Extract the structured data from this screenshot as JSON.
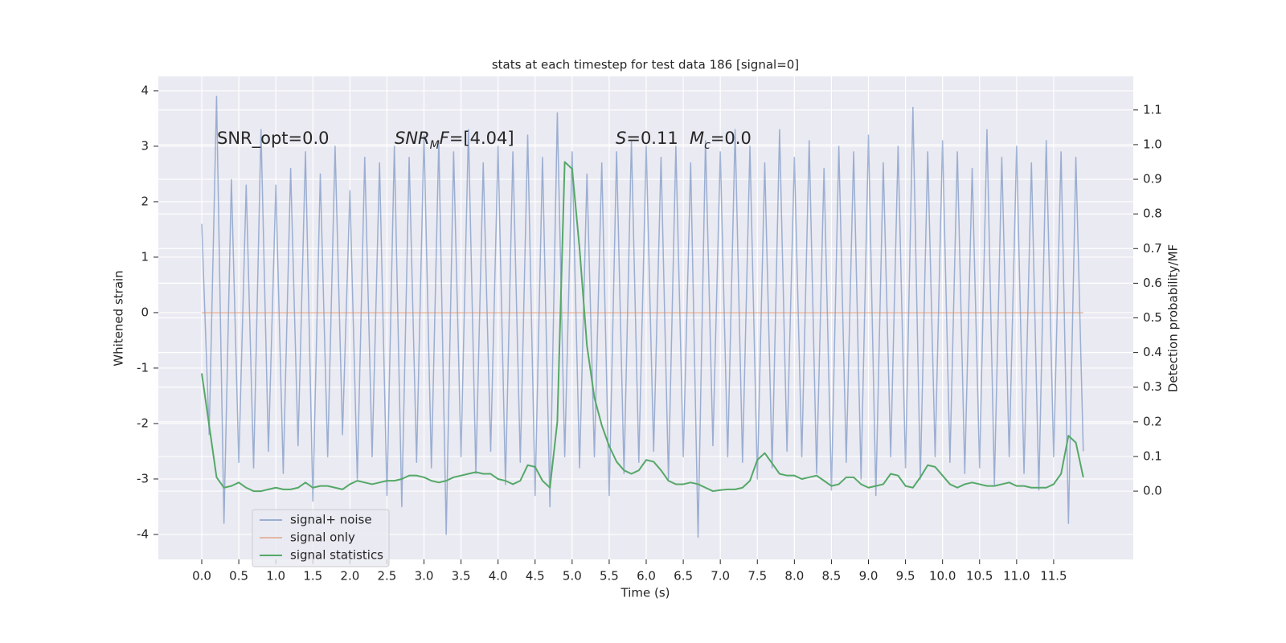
{
  "chart_data": {
    "type": "line",
    "title": "stats at each timestep for test data 186 [signal=0]",
    "xlabel": "Time (s)",
    "ylabel": "Whitened strain",
    "y2label": "Detection probability/MF",
    "annotations": [
      [
        {
          "text": "SNR_opt=0.0",
          "style": "normal"
        }
      ],
      [
        {
          "text": "SNR",
          "style": "italic"
        },
        {
          "text": "M",
          "style": "sub"
        },
        {
          "text": "F",
          "style": "italic"
        },
        {
          "text": "=[4.04]",
          "style": "normal"
        }
      ],
      [
        {
          "text": "S",
          "style": "italic"
        },
        {
          "text": "=0.11",
          "style": "normal"
        }
      ],
      [
        {
          "text": "M",
          "style": "italic"
        },
        {
          "text": "c",
          "style": "sub"
        },
        {
          "text": "=0.0",
          "style": "normal"
        }
      ]
    ],
    "x": [
      0.0,
      0.1,
      0.2,
      0.3,
      0.4,
      0.5,
      0.6,
      0.7,
      0.8,
      0.9,
      1.0,
      1.1,
      1.2,
      1.3,
      1.4,
      1.5,
      1.6,
      1.7,
      1.8,
      1.9,
      2.0,
      2.1,
      2.2,
      2.3,
      2.4,
      2.5,
      2.6,
      2.7,
      2.8,
      2.9,
      3.0,
      3.1,
      3.2,
      3.3,
      3.4,
      3.5,
      3.6,
      3.7,
      3.8,
      3.9,
      4.0,
      4.1,
      4.2,
      4.3,
      4.4,
      4.5,
      4.6,
      4.7,
      4.8,
      4.9,
      5.0,
      5.1,
      5.2,
      5.3,
      5.4,
      5.5,
      5.6,
      5.7,
      5.8,
      5.9,
      6.0,
      6.1,
      6.2,
      6.3,
      6.4,
      6.5,
      6.6,
      6.7,
      6.8,
      6.9,
      7.0,
      7.1,
      7.2,
      7.3,
      7.4,
      7.5,
      7.6,
      7.7,
      7.8,
      7.9,
      8.0,
      8.1,
      8.2,
      8.3,
      8.4,
      8.5,
      8.6,
      8.7,
      8.8,
      8.9,
      9.0,
      9.1,
      9.2,
      9.3,
      9.4,
      9.5,
      9.6,
      9.7,
      9.8,
      9.9,
      10.0,
      10.1,
      10.2,
      10.3,
      10.4,
      10.5,
      10.6,
      10.7,
      10.8,
      10.9,
      11.0,
      11.1,
      11.2,
      11.3,
      11.4,
      11.5,
      11.6,
      11.7,
      11.8,
      11.9
    ],
    "series": [
      {
        "name": "signal+ noise",
        "color": "#4c72b0",
        "opacity": 0.5,
        "axis": "y",
        "values": [
          1.6,
          -2.2,
          3.9,
          -3.8,
          2.4,
          -2.7,
          2.3,
          -2.8,
          3.3,
          -2.5,
          2.3,
          -2.9,
          2.6,
          -2.4,
          2.9,
          -3.4,
          2.5,
          -2.6,
          3.0,
          -2.2,
          2.2,
          -3.0,
          2.8,
          -2.6,
          2.7,
          -3.3,
          3.0,
          -3.5,
          2.8,
          -2.7,
          3.2,
          -2.8,
          3.1,
          -4.0,
          2.9,
          -2.6,
          3.3,
          -2.9,
          2.7,
          -2.5,
          3.0,
          -3.1,
          2.9,
          -2.7,
          3.2,
          -3.3,
          2.8,
          -3.5,
          3.6,
          -2.6,
          2.9,
          -2.8,
          2.5,
          -2.6,
          2.7,
          -3.3,
          2.9,
          -2.9,
          3.1,
          -2.7,
          3.0,
          -2.5,
          2.8,
          -3.0,
          3.0,
          -2.6,
          2.7,
          -4.05,
          3.1,
          -2.4,
          2.9,
          -2.6,
          3.3,
          -2.7,
          3.0,
          -3.0,
          2.7,
          -2.8,
          3.3,
          -2.5,
          2.8,
          -2.6,
          3.1,
          -2.9,
          2.6,
          -3.2,
          3.0,
          -2.7,
          2.9,
          -3.0,
          3.2,
          -3.3,
          2.7,
          -2.6,
          3.0,
          -2.8,
          3.7,
          -3.0,
          2.9,
          -2.6,
          3.1,
          -2.7,
          2.9,
          -2.9,
          2.6,
          -2.8,
          3.3,
          -3.1,
          2.8,
          -2.6,
          3.0,
          -2.9,
          2.7,
          -3.2,
          3.1,
          -2.6,
          2.9,
          -3.8,
          2.8,
          -2.5
        ]
      },
      {
        "name": "signal only",
        "color": "#dd8452",
        "opacity": 0.5,
        "axis": "y",
        "values": [
          0,
          0,
          0,
          0,
          0,
          0,
          0,
          0,
          0,
          0,
          0,
          0,
          0,
          0,
          0,
          0,
          0,
          0,
          0,
          0,
          0,
          0,
          0,
          0,
          0,
          0,
          0,
          0,
          0,
          0,
          0,
          0,
          0,
          0,
          0,
          0,
          0,
          0,
          0,
          0,
          0,
          0,
          0,
          0,
          0,
          0,
          0,
          0,
          0,
          0,
          0,
          0,
          0,
          0,
          0,
          0,
          0,
          0,
          0,
          0,
          0,
          0,
          0,
          0,
          0,
          0,
          0,
          0,
          0,
          0,
          0,
          0,
          0,
          0,
          0,
          0,
          0,
          0,
          0,
          0,
          0,
          0,
          0,
          0,
          0,
          0,
          0,
          0,
          0,
          0,
          0,
          0,
          0,
          0,
          0,
          0,
          0,
          0,
          0,
          0,
          0,
          0,
          0,
          0,
          0,
          0,
          0,
          0,
          0,
          0,
          0,
          0,
          0,
          0,
          0,
          0,
          0,
          0,
          0,
          0
        ]
      },
      {
        "name": "signal statistics",
        "color": "#55a868",
        "opacity": 1,
        "axis": "y2",
        "values": [
          0.34,
          0.19,
          0.04,
          0.01,
          0.015,
          0.025,
          0.01,
          0.0,
          0.0,
          0.005,
          0.01,
          0.005,
          0.005,
          0.01,
          0.025,
          0.01,
          0.015,
          0.015,
          0.01,
          0.005,
          0.02,
          0.03,
          0.025,
          0.02,
          0.025,
          0.03,
          0.03,
          0.035,
          0.045,
          0.045,
          0.04,
          0.03,
          0.025,
          0.03,
          0.04,
          0.045,
          0.05,
          0.055,
          0.05,
          0.05,
          0.035,
          0.03,
          0.02,
          0.03,
          0.075,
          0.07,
          0.03,
          0.01,
          0.2,
          0.95,
          0.93,
          0.7,
          0.42,
          0.27,
          0.19,
          0.13,
          0.085,
          0.06,
          0.05,
          0.06,
          0.09,
          0.085,
          0.06,
          0.03,
          0.02,
          0.02,
          0.025,
          0.02,
          0.01,
          0.0,
          0.003,
          0.005,
          0.005,
          0.01,
          0.03,
          0.09,
          0.11,
          0.08,
          0.05,
          0.045,
          0.045,
          0.035,
          0.04,
          0.045,
          0.03,
          0.015,
          0.02,
          0.04,
          0.04,
          0.02,
          0.01,
          0.015,
          0.02,
          0.05,
          0.045,
          0.015,
          0.01,
          0.04,
          0.075,
          0.07,
          0.045,
          0.02,
          0.01,
          0.02,
          0.025,
          0.02,
          0.015,
          0.015,
          0.02,
          0.025,
          0.015,
          0.015,
          0.01,
          0.01,
          0.01,
          0.02,
          0.05,
          0.16,
          0.14,
          0.04
        ]
      }
    ],
    "xlim": [
      -0.586,
      12.575
    ],
    "xticks": [
      {
        "value": 0,
        "label": "0.0"
      },
      0.5,
      {
        "value": 1,
        "label": "1.0"
      },
      1.5,
      {
        "value": 2,
        "label": "2.0"
      },
      2.5,
      {
        "value": 3,
        "label": "3.0"
      },
      3.5,
      {
        "value": 4,
        "label": "4.0"
      },
      4.5,
      {
        "value": 5,
        "label": "5.0"
      },
      5.5,
      {
        "value": 6,
        "label": "6.0"
      },
      6.5,
      {
        "value": 7,
        "label": "7.0"
      },
      7.5,
      {
        "value": 8,
        "label": "8.0"
      },
      8.5,
      {
        "value": 9,
        "label": "9.0"
      },
      9.5,
      {
        "value": 10,
        "label": "10.0"
      },
      10.5,
      {
        "value": 11,
        "label": "11.0"
      },
      11.5
    ],
    "ylim": [
      -4.45,
      4.26
    ],
    "yticks": [
      -4,
      -3,
      -2,
      -1,
      0,
      1,
      2,
      3,
      4
    ],
    "y2lim": [
      -0.197,
      1.197
    ],
    "y2ticks": [
      {
        "value": 0,
        "label": "0.0"
      },
      0.1,
      0.2,
      0.3,
      0.4,
      0.5,
      0.6,
      0.7,
      0.8,
      0.9,
      {
        "value": 1,
        "label": "1.0"
      },
      1.1
    ],
    "grid": true,
    "legend": "lower left",
    "background": "#eaeaf2"
  }
}
